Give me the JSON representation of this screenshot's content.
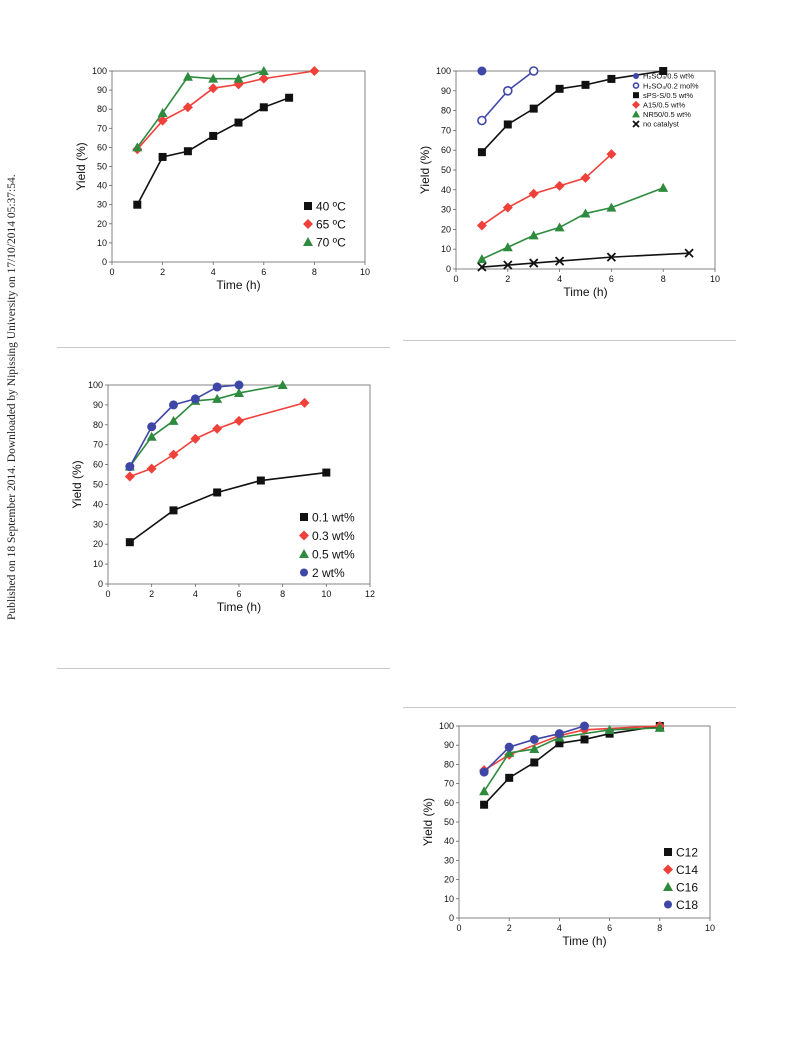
{
  "side_note": "Published on 18 September 2014. Downloaded by Nipissing University on 17/10/2014 05:37:54.",
  "chart_data": [
    {
      "id": "c1",
      "type": "line",
      "xlabel": "Time (h)",
      "ylabel": "Yield (%)",
      "xlim": [
        0,
        10
      ],
      "xticks": [
        0,
        2,
        4,
        6,
        8,
        10
      ],
      "ylim": [
        0,
        100
      ],
      "yticks": [
        0,
        10,
        20,
        30,
        40,
        50,
        60,
        70,
        80,
        90,
        100
      ],
      "grid": false,
      "legend_position": "bottom-right",
      "series": [
        {
          "name": "40 ºC",
          "color": "#111111",
          "marker": "square",
          "x": [
            1,
            2,
            3,
            4,
            5,
            6,
            7
          ],
          "y": [
            30,
            55,
            58,
            66,
            73,
            81,
            86
          ]
        },
        {
          "name": "65 ºC",
          "color": "#f0403a",
          "marker": "diamond",
          "x": [
            1,
            2,
            3,
            4,
            5,
            6,
            8
          ],
          "y": [
            59,
            74,
            81,
            91,
            93,
            96,
            100
          ]
        },
        {
          "name": "70 ºC",
          "color": "#2e8b3e",
          "marker": "triangle",
          "x": [
            1,
            2,
            3,
            4,
            5,
            6
          ],
          "y": [
            60,
            78,
            97,
            96,
            96,
            100
          ]
        }
      ]
    },
    {
      "id": "c2",
      "type": "line",
      "xlabel": "Time (h)",
      "ylabel": "Yield (%)",
      "xlim": [
        0,
        10
      ],
      "xticks": [
        0,
        2,
        4,
        6,
        8,
        10
      ],
      "ylim": [
        0,
        100
      ],
      "yticks": [
        0,
        10,
        20,
        30,
        40,
        50,
        60,
        70,
        80,
        90,
        100
      ],
      "grid": false,
      "legend_position": "top-right",
      "series": [
        {
          "name": "H₂SO₄/0.5 wt%",
          "color": "#3e47a8",
          "marker": "circle",
          "x": [
            1
          ],
          "y": [
            100
          ]
        },
        {
          "name": "H₂SO₄/0.2 mol%",
          "color": "#3e47a8",
          "marker": "open-circle",
          "x": [
            1,
            2,
            3
          ],
          "y": [
            75,
            90,
            100
          ]
        },
        {
          "name": "sPS-S/0.5 wt%",
          "color": "#111111",
          "marker": "square",
          "x": [
            1,
            2,
            3,
            4,
            5,
            6,
            8
          ],
          "y": [
            59,
            73,
            81,
            91,
            93,
            96,
            100
          ]
        },
        {
          "name": "A15/0.5 wt%",
          "color": "#f0403a",
          "marker": "diamond",
          "x": [
            1,
            2,
            3,
            4,
            5,
            6
          ],
          "y": [
            22,
            31,
            38,
            42,
            46,
            58
          ]
        },
        {
          "name": "NR50/0.5 wt%",
          "color": "#2e8b3e",
          "marker": "triangle",
          "x": [
            1,
            2,
            3,
            4,
            5,
            6,
            8
          ],
          "y": [
            5,
            11,
            17,
            21,
            28,
            31,
            41
          ]
        },
        {
          "name": "no catalyst",
          "color": "#111111",
          "marker": "cross",
          "x": [
            1,
            2,
            3,
            4,
            6,
            9
          ],
          "y": [
            1,
            2,
            3,
            4,
            6,
            8
          ]
        }
      ]
    },
    {
      "id": "c3",
      "type": "line",
      "xlabel": "Time (h)",
      "ylabel": "Yield (%)",
      "xlim": [
        0,
        12
      ],
      "xticks": [
        0,
        2,
        4,
        6,
        8,
        10,
        12
      ],
      "ylim": [
        0,
        100
      ],
      "yticks": [
        0,
        10,
        20,
        30,
        40,
        50,
        60,
        70,
        80,
        90,
        100
      ],
      "grid": false,
      "legend_position": "bottom-right",
      "series": [
        {
          "name": "0.1 wt%",
          "color": "#111111",
          "marker": "square",
          "x": [
            1,
            3,
            5,
            7,
            10
          ],
          "y": [
            21,
            37,
            46,
            52,
            56
          ]
        },
        {
          "name": "0.3 wt%",
          "color": "#f0403a",
          "marker": "diamond",
          "x": [
            1,
            2,
            3,
            4,
            5,
            6,
            9
          ],
          "y": [
            54,
            58,
            65,
            73,
            78,
            82,
            91
          ]
        },
        {
          "name": "0.5 wt%",
          "color": "#2e8b3e",
          "marker": "triangle",
          "x": [
            1,
            2,
            3,
            4,
            5,
            6,
            8
          ],
          "y": [
            59,
            74,
            82,
            92,
            93,
            96,
            100
          ]
        },
        {
          "name": "2 wt%",
          "color": "#3e47a8",
          "marker": "circle",
          "x": [
            1,
            2,
            3,
            4,
            5,
            6
          ],
          "y": [
            59,
            79,
            90,
            93,
            99,
            100
          ]
        }
      ]
    },
    {
      "id": "c4",
      "type": "line",
      "xlabel": "Time (h)",
      "ylabel": "Yield (%)",
      "xlim": [
        0,
        10
      ],
      "xticks": [
        0,
        2,
        4,
        6,
        8,
        10
      ],
      "ylim": [
        0,
        100
      ],
      "yticks": [
        0,
        10,
        20,
        30,
        40,
        50,
        60,
        70,
        80,
        90,
        100
      ],
      "grid": false,
      "legend_position": "bottom-right",
      "series": [
        {
          "name": "C12",
          "color": "#111111",
          "marker": "square",
          "x": [
            1,
            2,
            3,
            4,
            5,
            6,
            8
          ],
          "y": [
            59,
            73,
            81,
            91,
            93,
            96,
            100
          ]
        },
        {
          "name": "C14",
          "color": "#f0403a",
          "marker": "diamond",
          "x": [
            1,
            2,
            4,
            5,
            8
          ],
          "y": [
            77,
            85,
            95,
            98,
            100
          ]
        },
        {
          "name": "C16",
          "color": "#2e8b3e",
          "marker": "triangle",
          "x": [
            1,
            2,
            3,
            4,
            6,
            8
          ],
          "y": [
            66,
            86,
            88,
            94,
            98,
            99
          ]
        },
        {
          "name": "C18",
          "color": "#3e47a8",
          "marker": "circle",
          "x": [
            1,
            2,
            3,
            4,
            5
          ],
          "y": [
            76,
            89,
            93,
            96,
            100
          ]
        }
      ]
    }
  ]
}
